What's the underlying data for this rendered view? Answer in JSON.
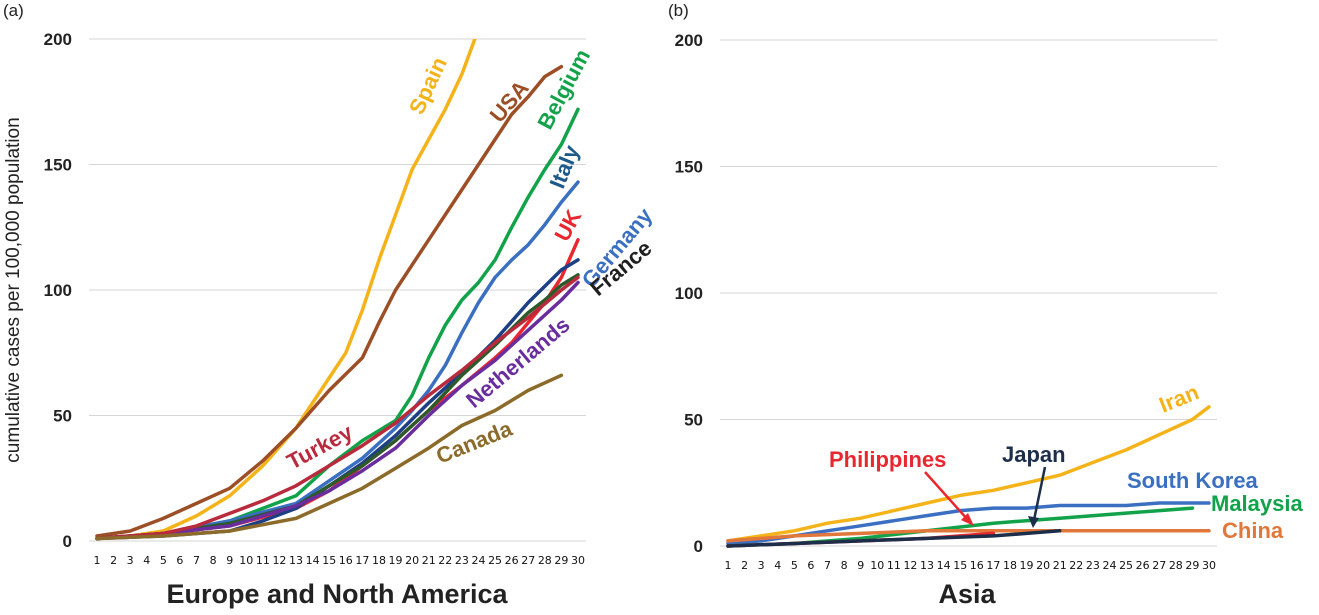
{
  "chart_data": [
    {
      "type": "line",
      "panel_label": "(a)",
      "title": "",
      "xlabel": "Europe and North America",
      "ylabel": "cumulative cases per 100,000 population",
      "xlim": [
        1,
        30
      ],
      "ylim": [
        0,
        200
      ],
      "yticks": [
        0,
        50,
        100,
        150,
        200
      ],
      "xticks": [
        1,
        2,
        3,
        4,
        5,
        6,
        7,
        8,
        9,
        10,
        11,
        12,
        13,
        14,
        15,
        16,
        17,
        18,
        19,
        20,
        21,
        22,
        23,
        24,
        25,
        26,
        27,
        28,
        29,
        30
      ],
      "grid": true,
      "series": [
        {
          "name": "Spain",
          "color": "#f5b31a",
          "x": [
            1,
            3,
            5,
            7,
            9,
            11,
            13,
            14,
            15,
            16,
            17,
            18,
            19,
            20,
            21,
            22,
            23,
            24
          ],
          "values": [
            1,
            2,
            4,
            10,
            18,
            30,
            45,
            55,
            65,
            75,
            92,
            112,
            130,
            148,
            160,
            172,
            186,
            204
          ]
        },
        {
          "name": "USA",
          "color": "#9c4e26",
          "x": [
            1,
            3,
            5,
            7,
            9,
            11,
            13,
            15,
            17,
            18,
            19,
            20,
            21,
            22,
            23,
            24,
            25,
            26,
            27,
            28,
            29
          ],
          "values": [
            2,
            4,
            9,
            15,
            21,
            32,
            45,
            60,
            73,
            87,
            100,
            110,
            120,
            130,
            140,
            150,
            160,
            170,
            177,
            185,
            189
          ]
        },
        {
          "name": "Belgium",
          "color": "#12a34a",
          "x": [
            1,
            5,
            9,
            13,
            15,
            17,
            19,
            20,
            21,
            22,
            23,
            24,
            25,
            26,
            27,
            28,
            29,
            30
          ],
          "values": [
            1,
            3,
            8,
            18,
            30,
            40,
            48,
            58,
            73,
            86,
            96,
            103,
            112,
            125,
            137,
            148,
            158,
            172
          ]
        },
        {
          "name": "Italy",
          "color": "#3a6fc2",
          "x": [
            1,
            5,
            9,
            13,
            15,
            17,
            19,
            20,
            21,
            22,
            23,
            24,
            25,
            26,
            27,
            28,
            29,
            30
          ],
          "values": [
            1,
            3,
            8,
            15,
            24,
            33,
            45,
            52,
            60,
            70,
            83,
            95,
            105,
            112,
            118,
            126,
            135,
            143
          ]
        },
        {
          "name": "UK",
          "color": "#e8272f",
          "x": [
            1,
            5,
            9,
            13,
            15,
            17,
            19,
            21,
            23,
            25,
            26,
            27,
            28,
            29,
            30
          ],
          "values": [
            1,
            3,
            6,
            13,
            20,
            30,
            40,
            52,
            62,
            73,
            79,
            87,
            95,
            105,
            120
          ]
        },
        {
          "name": "Germany",
          "color": "#1d3f86",
          "x": [
            1,
            5,
            9,
            11,
            13,
            15,
            17,
            19,
            21,
            23,
            25,
            27,
            29,
            30
          ],
          "values": [
            1,
            2,
            4,
            8,
            13,
            22,
            31,
            42,
            55,
            67,
            80,
            95,
            108,
            112
          ]
        },
        {
          "name": "France",
          "color": "#2c5a2a",
          "x": [
            1,
            5,
            9,
            13,
            15,
            17,
            19,
            21,
            23,
            25,
            27,
            28,
            29,
            30
          ],
          "values": [
            1,
            3,
            7,
            14,
            22,
            30,
            40,
            52,
            66,
            78,
            91,
            96,
            102,
            106
          ]
        },
        {
          "name": "Netherlands",
          "color": "#6a2d9e",
          "x": [
            1,
            5,
            9,
            13,
            15,
            17,
            19,
            21,
            23,
            25,
            27,
            29,
            30
          ],
          "values": [
            1,
            3,
            6,
            14,
            20,
            28,
            37,
            50,
            62,
            72,
            84,
            96,
            103
          ]
        },
        {
          "name": "Turkey",
          "color": "#b82a3c",
          "x": [
            1,
            5,
            7,
            9,
            11,
            13,
            15,
            17,
            19,
            21,
            23,
            25,
            27,
            29,
            30
          ],
          "values": [
            1,
            3,
            6,
            11,
            16,
            22,
            30,
            38,
            47,
            58,
            68,
            79,
            89,
            100,
            105
          ]
        },
        {
          "name": "Canada",
          "color": "#8c6b2a",
          "x": [
            1,
            5,
            9,
            13,
            15,
            17,
            19,
            21,
            23,
            25,
            27,
            29
          ],
          "values": [
            1,
            2,
            4,
            9,
            15,
            21,
            29,
            37,
            46,
            52,
            60,
            66
          ]
        }
      ]
    },
    {
      "type": "line",
      "panel_label": "(b)",
      "title": "",
      "xlabel": "Asia",
      "ylabel": "",
      "xlim": [
        1,
        30
      ],
      "ylim": [
        0,
        200
      ],
      "yticks": [
        0,
        50,
        100,
        150,
        200
      ],
      "xticks": [
        1,
        2,
        3,
        4,
        5,
        6,
        7,
        8,
        9,
        10,
        11,
        12,
        13,
        14,
        15,
        16,
        17,
        18,
        19,
        20,
        21,
        22,
        23,
        24,
        25,
        26,
        27,
        28,
        29,
        30
      ],
      "grid": true,
      "series": [
        {
          "name": "Iran",
          "color": "#f5b31a",
          "x": [
            1,
            3,
            5,
            7,
            9,
            11,
            13,
            15,
            17,
            19,
            21,
            23,
            25,
            27,
            29,
            30
          ],
          "values": [
            2,
            4,
            6,
            9,
            11,
            14,
            17,
            20,
            22,
            25,
            28,
            33,
            38,
            44,
            50,
            55
          ]
        },
        {
          "name": "South Korea",
          "color": "#3a6fc2",
          "x": [
            1,
            3,
            5,
            7,
            9,
            11,
            13,
            15,
            17,
            19,
            21,
            23,
            25,
            27,
            29,
            30
          ],
          "values": [
            1,
            2,
            4,
            6,
            8,
            10,
            12,
            14,
            15,
            15,
            16,
            16,
            16,
            17,
            17,
            17
          ]
        },
        {
          "name": "Malaysia",
          "color": "#12a34a",
          "x": [
            1,
            5,
            9,
            13,
            17,
            21,
            25,
            29
          ],
          "values": [
            0,
            1,
            3,
            6,
            9,
            11,
            13,
            15
          ]
        },
        {
          "name": "China",
          "color": "#e1773a",
          "x": [
            1,
            5,
            9,
            13,
            17,
            21,
            25,
            30
          ],
          "values": [
            2,
            4,
            5,
            6,
            6,
            6,
            6,
            6
          ]
        },
        {
          "name": "Philippines",
          "color": "#e8272f",
          "x": [
            1,
            5,
            9,
            13,
            17
          ],
          "values": [
            0,
            1,
            2,
            3,
            5
          ]
        },
        {
          "name": "Japan",
          "color": "#1c2e4a",
          "x": [
            1,
            5,
            9,
            13,
            17,
            19,
            21
          ],
          "values": [
            0,
            1,
            2,
            3,
            4,
            5,
            6
          ]
        }
      ]
    }
  ]
}
